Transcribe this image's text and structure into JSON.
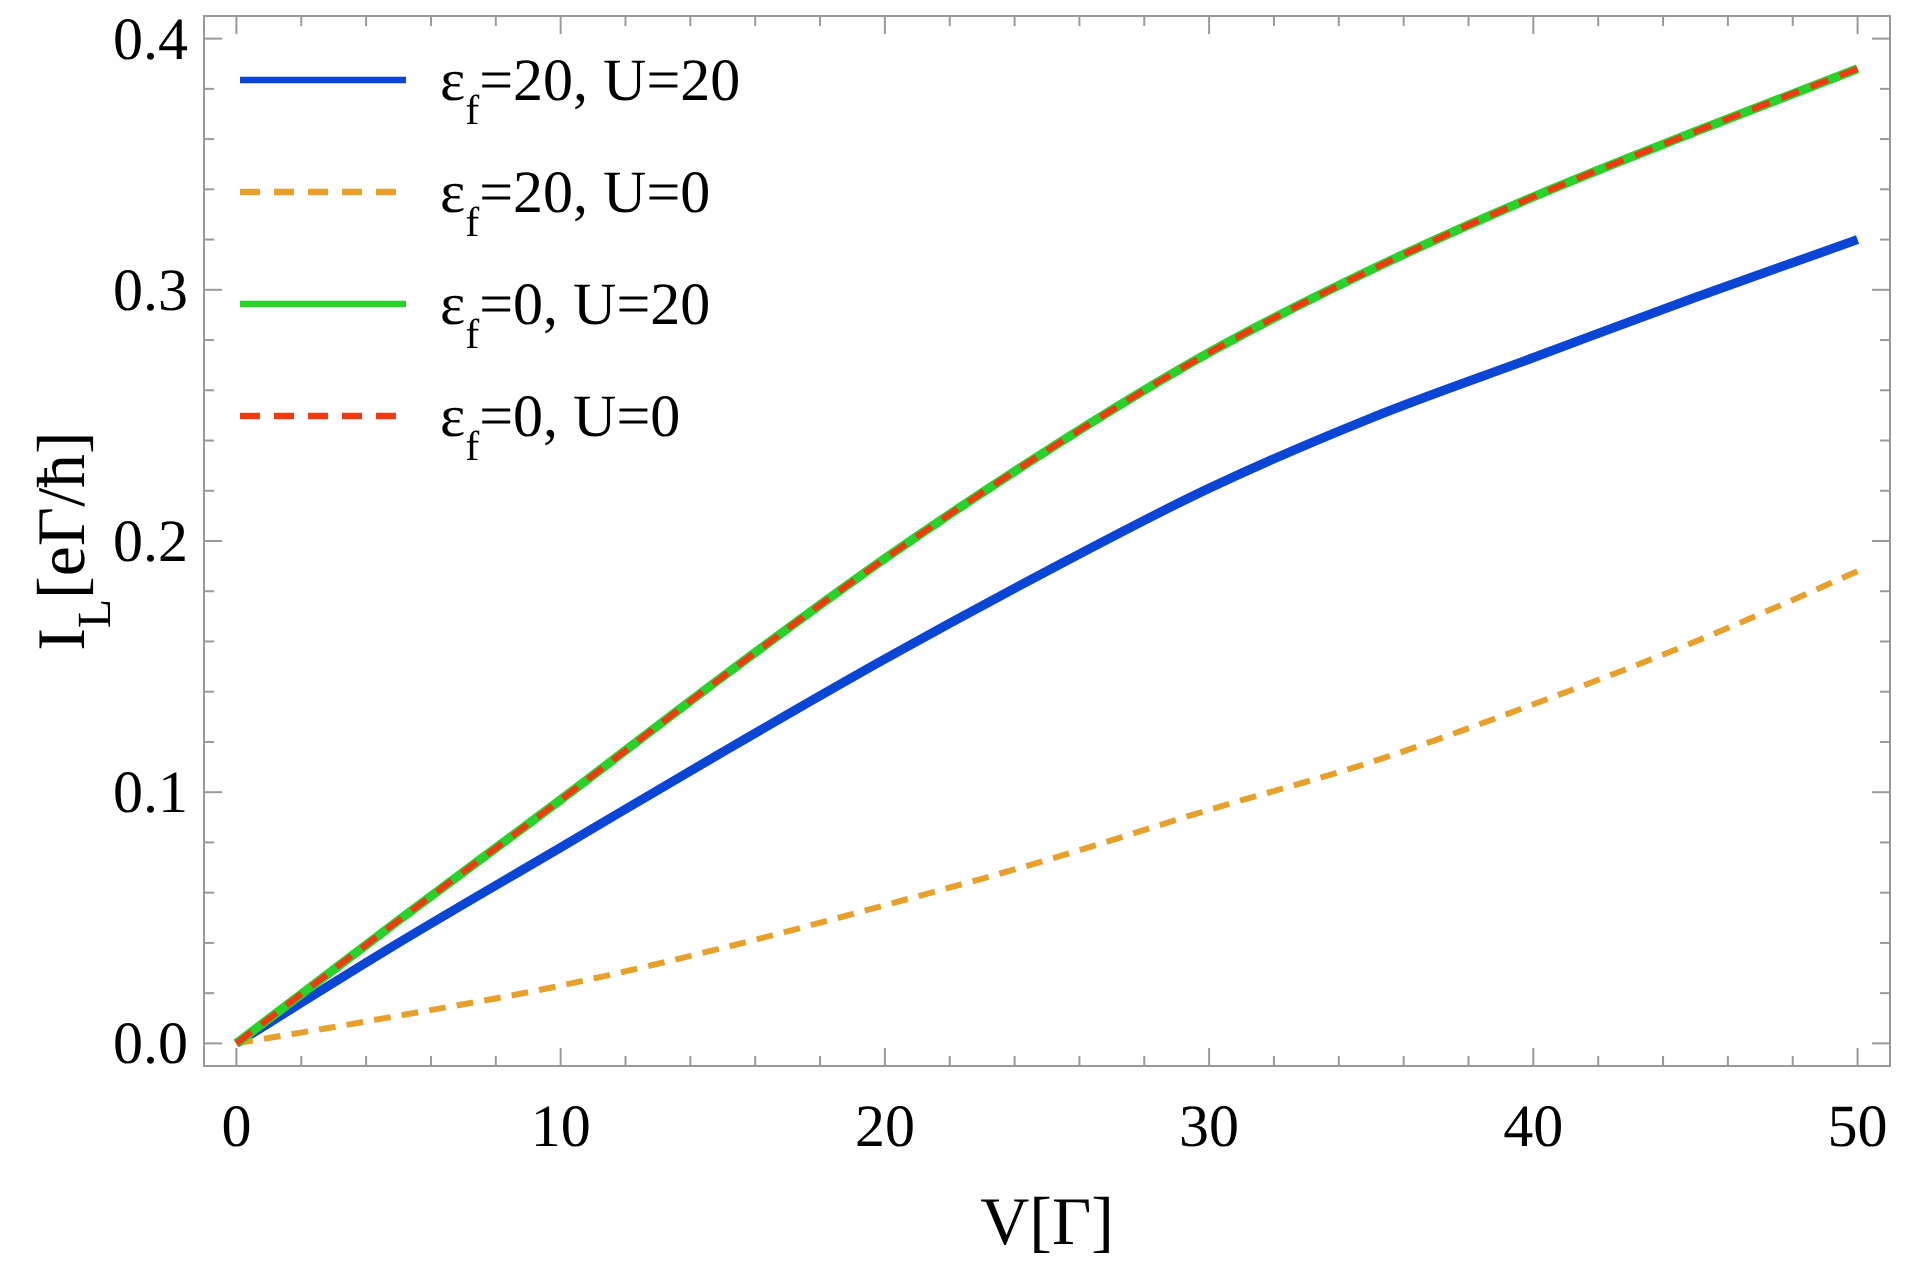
{
  "chart_data": {
    "type": "line",
    "xlabel": "V[Γ]",
    "ylabel": "I$_{L}$[eΓ/ħ]",
    "xlim": [
      -1,
      51
    ],
    "ylim": [
      -0.009,
      0.409
    ],
    "xticks": [
      0,
      {
        "value": 2,
        "label": null
      },
      {
        "value": 4,
        "label": null
      },
      {
        "value": 6,
        "label": null
      },
      {
        "value": 8,
        "label": null
      },
      10,
      {
        "value": 12,
        "label": null
      },
      {
        "value": 14,
        "label": null
      },
      {
        "value": 16,
        "label": null
      },
      {
        "value": 18,
        "label": null
      },
      20,
      {
        "value": 22,
        "label": null
      },
      {
        "value": 24,
        "label": null
      },
      {
        "value": 26,
        "label": null
      },
      {
        "value": 28,
        "label": null
      },
      30,
      {
        "value": 32,
        "label": null
      },
      {
        "value": 34,
        "label": null
      },
      {
        "value": 36,
        "label": null
      },
      {
        "value": 38,
        "label": null
      },
      40,
      {
        "value": 42,
        "label": null
      },
      {
        "value": 44,
        "label": null
      },
      {
        "value": 46,
        "label": null
      },
      {
        "value": 48,
        "label": null
      },
      50
    ],
    "yticks": [
      {
        "value": 0,
        "label": "0.0"
      },
      {
        "value": 0.02,
        "label": null
      },
      {
        "value": 0.04,
        "label": null
      },
      {
        "value": 0.06,
        "label": null
      },
      {
        "value": 0.08,
        "label": null
      },
      0.1,
      {
        "value": 0.12,
        "label": null
      },
      {
        "value": 0.14,
        "label": null
      },
      {
        "value": 0.16,
        "label": null
      },
      {
        "value": 0.18,
        "label": null
      },
      0.2,
      {
        "value": 0.22,
        "label": null
      },
      {
        "value": 0.24,
        "label": null
      },
      {
        "value": 0.26,
        "label": null
      },
      {
        "value": 0.28,
        "label": null
      },
      0.3,
      {
        "value": 0.32,
        "label": null
      },
      {
        "value": 0.34,
        "label": null
      },
      {
        "value": 0.36,
        "label": null
      },
      {
        "value": 0.38,
        "label": null
      },
      0.4
    ],
    "x": [
      0,
      5,
      10,
      15,
      20,
      25,
      30,
      35,
      40,
      45,
      50
    ],
    "legend": "top left",
    "grid": false,
    "marker": "none",
    "series": [
      {
        "name": "ε$_{f}$=20, U=20",
        "color": "#0a45d6",
        "line_style": "solid",
        "values": [
          0,
          0.04,
          0.078,
          0.116,
          0.153,
          0.188,
          0.221,
          0.249,
          0.273,
          0.297,
          0.32
        ]
      },
      {
        "name": "ε$_{f}$=20, U=0",
        "color": "#e8a02c",
        "line_style": "dashed",
        "values": [
          0,
          0.011,
          0.023,
          0.038,
          0.055,
          0.073,
          0.093,
          0.112,
          0.135,
          0.16,
          0.188
        ]
      },
      {
        "name": "ε$_{f}$=0, U=20",
        "color": "#2bd12b",
        "line_style": "solid",
        "values": [
          0,
          0.049,
          0.097,
          0.146,
          0.193,
          0.236,
          0.275,
          0.308,
          0.337,
          0.363,
          0.388
        ]
      },
      {
        "name": "ε$_{f}$=0, U=0",
        "color": "#f03a12",
        "line_style": "dashed",
        "values": [
          0,
          0.049,
          0.097,
          0.146,
          0.193,
          0.236,
          0.275,
          0.308,
          0.337,
          0.363,
          0.388
        ]
      }
    ]
  }
}
